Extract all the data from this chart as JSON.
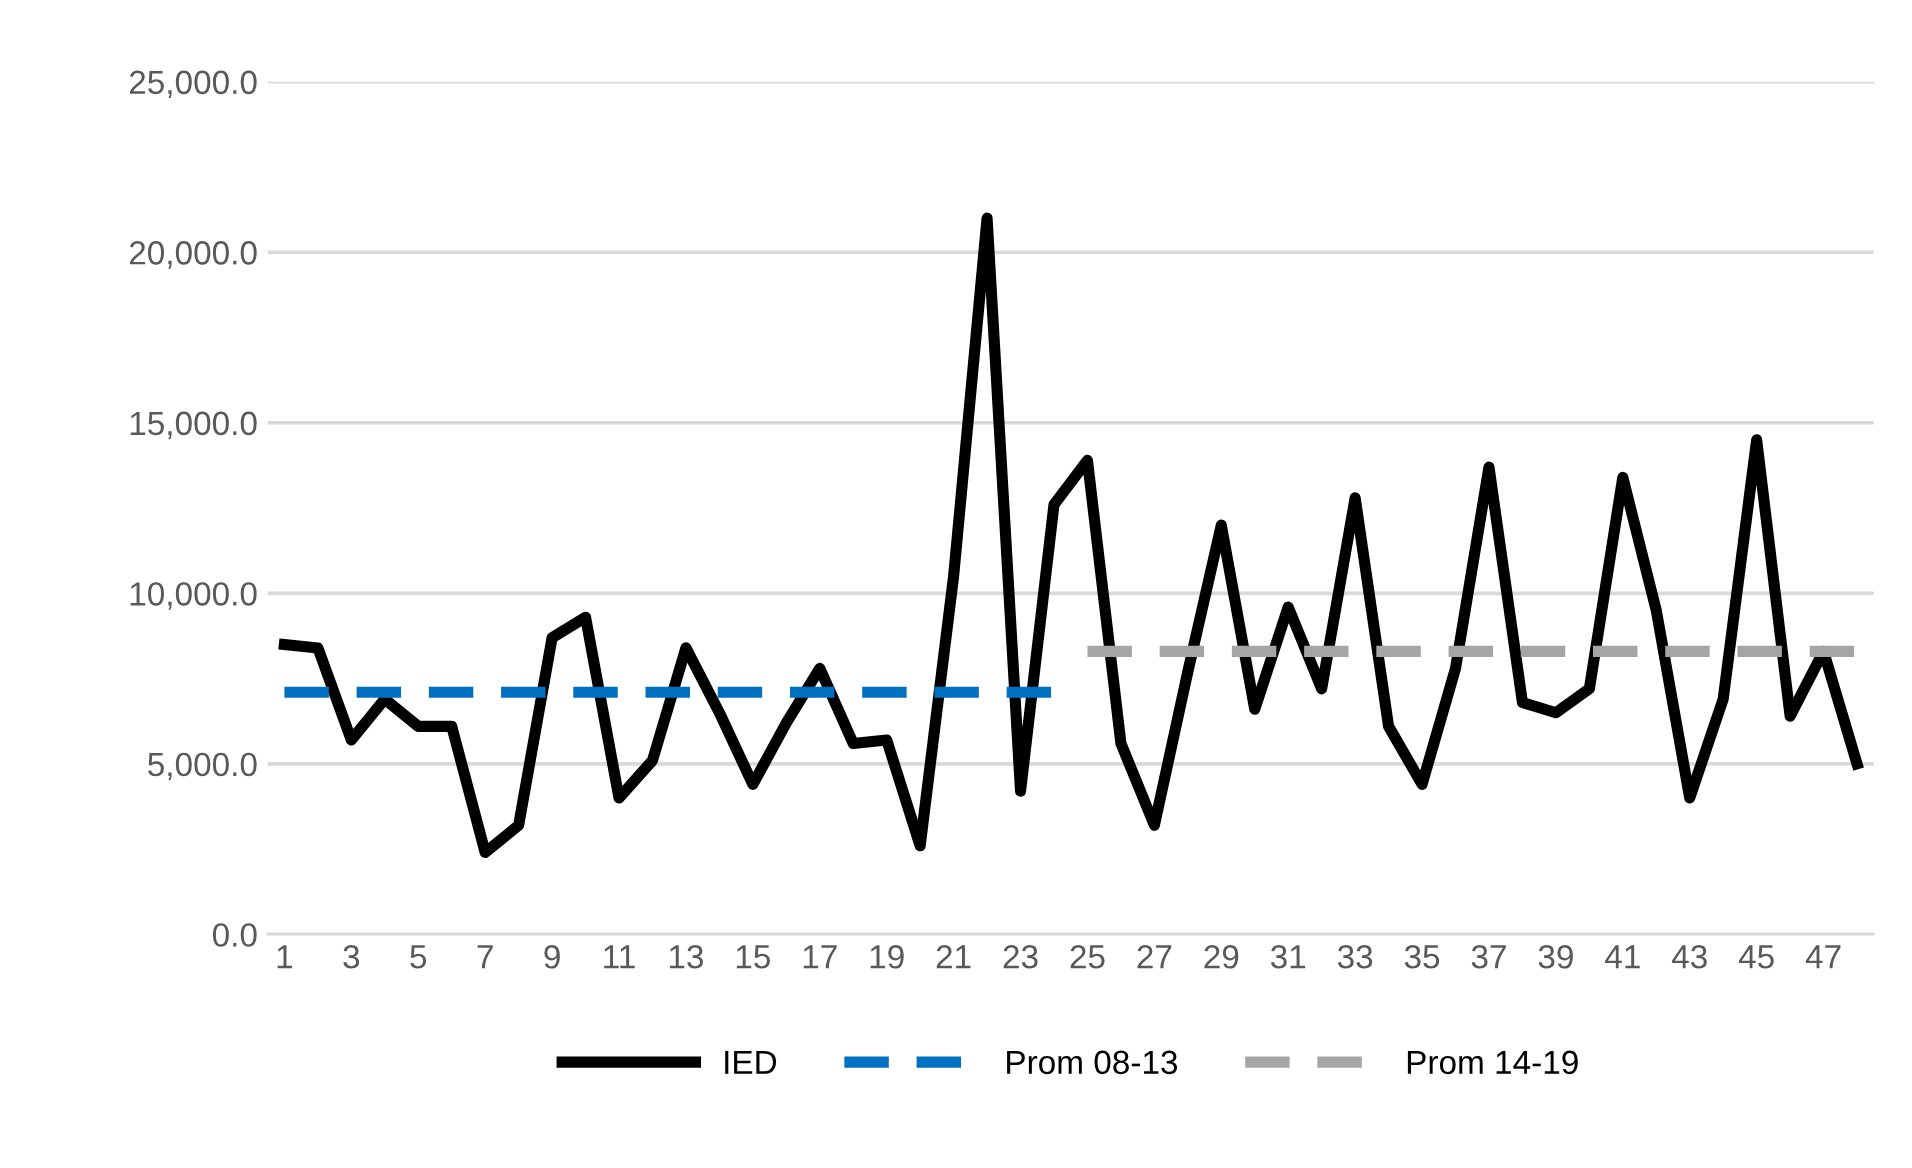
{
  "chart_data": {
    "type": "line",
    "categories": [
      "1",
      null,
      "3",
      null,
      "5",
      null,
      "7",
      null,
      "9",
      null,
      "11",
      null,
      "13",
      null,
      "15",
      null,
      "17",
      null,
      "19",
      null,
      "21",
      null,
      "23",
      null,
      "25",
      null,
      "27",
      null,
      "29",
      null,
      "31",
      null,
      "33",
      null,
      "35",
      null,
      "37",
      null,
      "39",
      null,
      "41",
      null,
      "43",
      null,
      "45",
      null,
      "47",
      null
    ],
    "series": [
      {
        "name": "IED",
        "color": "#000000",
        "line_style": "solid",
        "values": [
          8500,
          8400,
          5700,
          6900,
          6100,
          6100,
          2400,
          3200,
          8700,
          9300,
          4000,
          5100,
          8400,
          6500,
          4400,
          6200,
          7800,
          5600,
          5700,
          2600,
          10500,
          21000,
          4200,
          12600,
          13900,
          5600,
          3200,
          7700,
          12000,
          6600,
          9600,
          7200,
          12800,
          6100,
          4400,
          7800,
          13700,
          6800,
          6500,
          7200,
          13400,
          9500,
          4000,
          6900,
          14500,
          6400,
          8300,
          5000
        ]
      },
      {
        "name": "Prom 08-13",
        "color": "#0070c0",
        "line_style": "dashed",
        "values": [
          7100,
          7100,
          7100,
          7100,
          7100,
          7100,
          7100,
          7100,
          7100,
          7100,
          7100,
          7100,
          7100,
          7100,
          7100,
          7100,
          7100,
          7100,
          7100,
          7100,
          7100,
          7100,
          7100,
          7100,
          null,
          null,
          null,
          null,
          null,
          null,
          null,
          null,
          null,
          null,
          null,
          null,
          null,
          null,
          null,
          null,
          null,
          null,
          null,
          null,
          null,
          null,
          null,
          null
        ]
      },
      {
        "name": "Prom 14-19",
        "color": "#a5a5a5",
        "line_style": "dashed",
        "values": [
          null,
          null,
          null,
          null,
          null,
          null,
          null,
          null,
          null,
          null,
          null,
          null,
          null,
          null,
          null,
          null,
          null,
          null,
          null,
          null,
          null,
          null,
          null,
          null,
          8300,
          8300,
          8300,
          8300,
          8300,
          8300,
          8300,
          8300,
          8300,
          8300,
          8300,
          8300,
          8300,
          8300,
          8300,
          8300,
          8300,
          8300,
          8300,
          8300,
          8300,
          8300,
          8300,
          8300
        ]
      }
    ],
    "ylim": [
      0,
      25000
    ],
    "yticks": [
      {
        "value": 0,
        "label": "0.0"
      },
      {
        "value": 5000,
        "label": "5,000.0"
      },
      {
        "value": 10000,
        "label": "10,000.0"
      },
      {
        "value": 15000,
        "label": "15,000.0"
      },
      {
        "value": 20000,
        "label": "20,000.0"
      },
      {
        "value": 25000,
        "label": "25,000.0"
      }
    ],
    "grid": "y",
    "legend": "bottom",
    "marker": "none"
  }
}
